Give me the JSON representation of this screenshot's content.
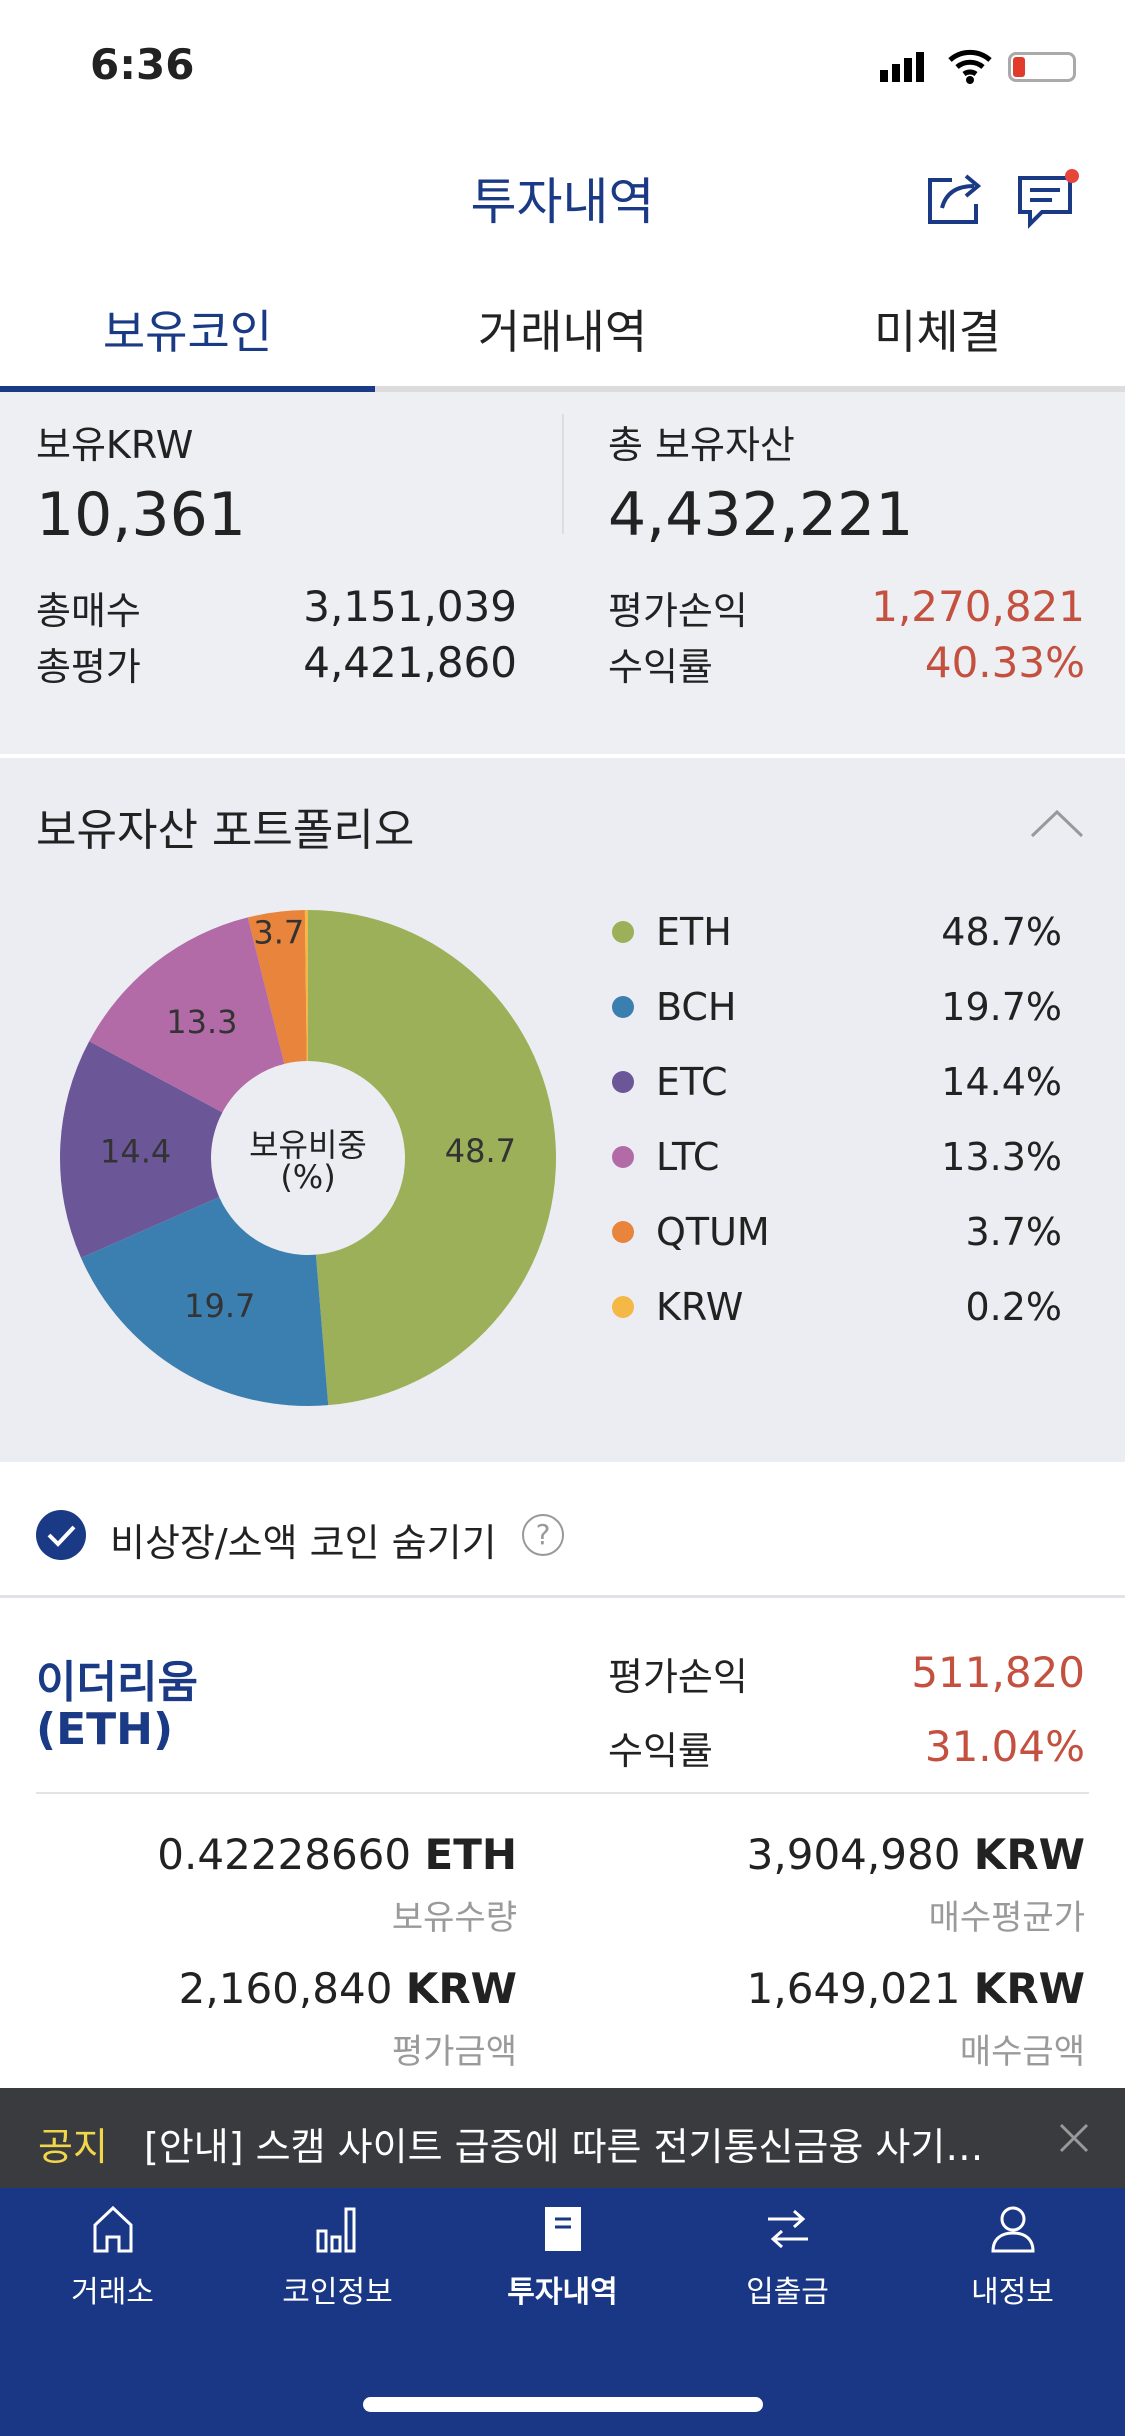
{
  "status_bar": {
    "time": "6:36"
  },
  "header": {
    "title": "투자내역",
    "share_icon": "share-icon",
    "message_icon": "chat-icon"
  },
  "tabs": [
    {
      "label": "보유코인",
      "active": true
    },
    {
      "label": "거래내역"
    },
    {
      "label": "미체결"
    }
  ],
  "summary": {
    "krw_label": "보유KRW",
    "krw_value": "10,361",
    "total_label": "총 보유자산",
    "total_value": "4,432,221",
    "buy_label": "총매수",
    "buy_value": "3,151,039",
    "eval_label": "총평가",
    "eval_value": "4,421,860",
    "pl_label": "평가손익",
    "pl_value": "1,270,821",
    "rate_label": "수익률",
    "rate_value": "40.33%"
  },
  "portfolio": {
    "title": "보유자산 포트폴리오",
    "center_label": "보유비중",
    "center_unit": "(%)",
    "chart_data": {
      "type": "pie",
      "title": "보유자산 포트폴리오",
      "categories": [
        "ETH",
        "BCH",
        "ETC",
        "LTC",
        "QTUM",
        "KRW"
      ],
      "values": [
        48.7,
        19.7,
        14.4,
        13.3,
        3.7,
        0.2
      ],
      "colors": [
        "#9bb058",
        "#3b7fb1",
        "#6b5798",
        "#b26ba7",
        "#e8843c",
        "#f3b846"
      ],
      "slice_labels": [
        "48.7",
        "19.7",
        "14.4",
        "13.3",
        "3.7",
        ""
      ],
      "legend_pct": [
        "48.7%",
        "19.7%",
        "14.4%",
        "13.3%",
        "3.7%",
        "0.2%"
      ],
      "legend": "right"
    }
  },
  "hide_option": {
    "label": "비상장/소액 코인 숨기기",
    "checked": true
  },
  "coin": {
    "name": "이더리움",
    "symbol": "(ETH)",
    "pl_label": "평가손익",
    "pl_value": "511,820",
    "rate_label": "수익률",
    "rate_value": "31.04%",
    "qty_value": "0.42228660",
    "qty_unit": "ETH",
    "qty_label": "보유수량",
    "avg_value": "3,904,980",
    "avg_unit": "KRW",
    "avg_label": "매수평균가",
    "evalamt_value": "2,160,840",
    "evalamt_unit": "KRW",
    "evalamt_label": "평가금액",
    "buyamt_value": "1,649,021",
    "buyamt_unit": "KRW",
    "buyamt_label": "매수금액"
  },
  "notice": {
    "tag": "공지",
    "text": "[안내] 스캠 사이트 급증에 따른 전기통신금융 사기…"
  },
  "bottom_nav": [
    {
      "label": "거래소"
    },
    {
      "label": "코인정보"
    },
    {
      "label": "투자내역",
      "active": true
    },
    {
      "label": "입출금"
    },
    {
      "label": "내정보"
    }
  ]
}
